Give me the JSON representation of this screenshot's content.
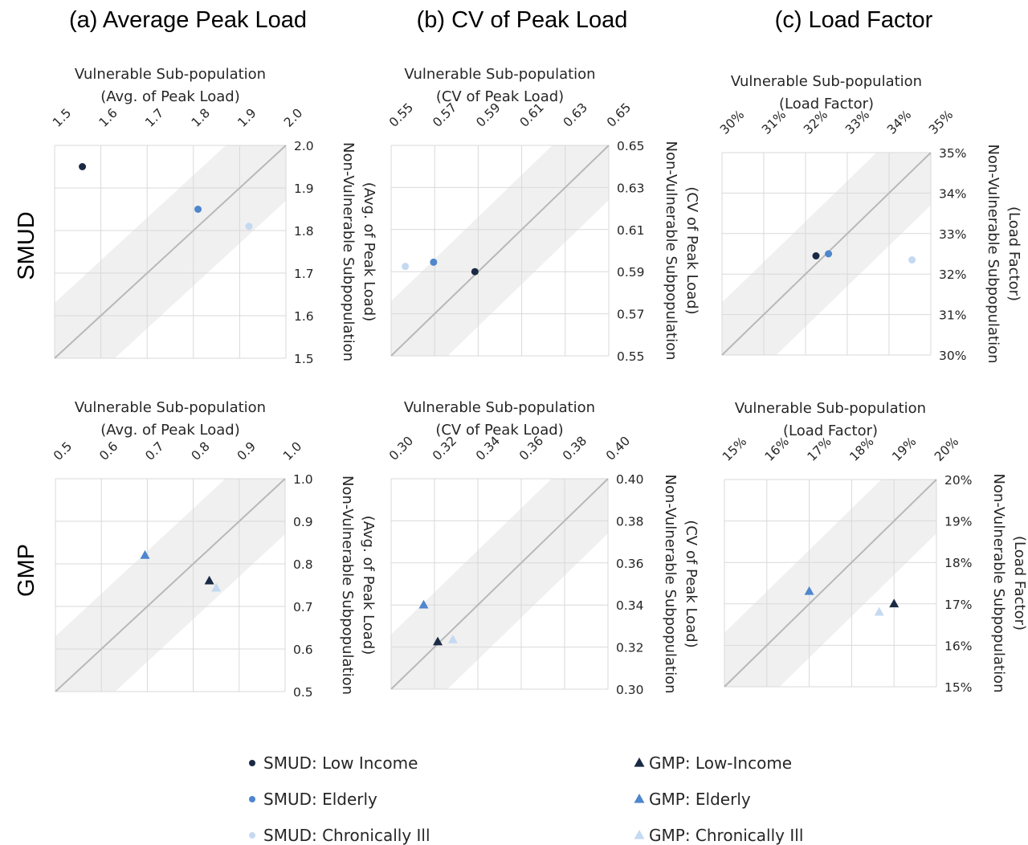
{
  "column_titles": [
    "(a) Average Peak Load",
    "(b) CV of Peak Load",
    "(c) Load Factor"
  ],
  "row_labels": [
    "SMUD",
    "GMP"
  ],
  "colors": {
    "low_income": "#1a2a44",
    "elderly": "#4f86cc",
    "chronically_ill": "#c5d9f1",
    "band": "#f0f0f0",
    "diagonal": "#b8b8b8",
    "grid": "#d9d9d9"
  },
  "legend": [
    {
      "label": "SMUD: Low Income",
      "marker": "circle",
      "color": "#1a2a44"
    },
    {
      "label": "GMP: Low-Income",
      "marker": "triangle",
      "color": "#1a2a44"
    },
    {
      "label": "SMUD: Elderly",
      "marker": "circle",
      "color": "#4f86cc"
    },
    {
      "label": "GMP: Elderly",
      "marker": "triangle",
      "color": "#4f86cc"
    },
    {
      "label": "SMUD: Chronically Ill",
      "marker": "circle",
      "color": "#c5d9f1"
    },
    {
      "label": "GMP: Chronically Ill",
      "marker": "triangle",
      "color": "#c5d9f1"
    }
  ],
  "chart_data": [
    {
      "type": "scatter",
      "group": "SMUD",
      "xlabel": [
        "Vulnerable Sub-population",
        "(Avg. of Peak Load)"
      ],
      "ylabel": [
        "Non-Vulnerable Subpopulation",
        "(Avg. of Peak Load)"
      ],
      "xlim": [
        1.5,
        2.0
      ],
      "ylim": [
        1.5,
        2.0
      ],
      "xticks": [
        "1.5",
        "1.6",
        "1.7",
        "1.8",
        "1.9",
        "2.0"
      ],
      "yticks": [
        "1.5",
        "1.6",
        "1.7",
        "1.8",
        "1.9",
        "2.0"
      ],
      "grid": true,
      "band": [
        -0.13,
        0.13
      ],
      "series": [
        {
          "name": "SMUD: Low Income",
          "x": [
            1.56
          ],
          "y": [
            1.95
          ]
        },
        {
          "name": "SMUD: Elderly",
          "x": [
            1.81
          ],
          "y": [
            1.85
          ]
        },
        {
          "name": "SMUD: Chronically Ill",
          "x": [
            1.92
          ],
          "y": [
            1.81
          ]
        }
      ]
    },
    {
      "type": "scatter",
      "group": "SMUD",
      "xlabel": [
        "Vulnerable Sub-population",
        "(CV of Peak Load)"
      ],
      "ylabel": [
        "Non-Vulnerable Subpopulation",
        "(CV of Peak Load)"
      ],
      "xlim": [
        0.55,
        0.65
      ],
      "ylim": [
        0.55,
        0.65
      ],
      "xticks": [
        "0.55",
        "0.57",
        "0.59",
        "0.61",
        "0.63",
        "0.65"
      ],
      "yticks": [
        "0.55",
        "0.57",
        "0.59",
        "0.61",
        "0.63",
        "0.65"
      ],
      "grid": true,
      "band": [
        -0.026,
        0.026
      ],
      "series": [
        {
          "name": "SMUD: Low Income",
          "x": [
            0.5885
          ],
          "y": [
            0.59
          ]
        },
        {
          "name": "SMUD: Elderly",
          "x": [
            0.5695
          ],
          "y": [
            0.5945
          ]
        },
        {
          "name": "SMUD: Chronically Ill",
          "x": [
            0.5565
          ],
          "y": [
            0.5925
          ]
        }
      ]
    },
    {
      "type": "scatter",
      "group": "SMUD",
      "xlabel": [
        "Vulnerable Sub-population",
        "(Load Factor)"
      ],
      "ylabel": [
        "Non-Vulnerable Subpopulation",
        "(Load Factor)"
      ],
      "xlim": [
        0.3,
        0.35
      ],
      "ylim": [
        0.3,
        0.35
      ],
      "xticks": [
        "30%",
        "31%",
        "32%",
        "33%",
        "34%",
        "35%"
      ],
      "yticks": [
        "30%",
        "31%",
        "32%",
        "33%",
        "34%",
        "35%"
      ],
      "grid": true,
      "band": [
        -0.013,
        0.013
      ],
      "series": [
        {
          "name": "SMUD: Low Income",
          "x": [
            0.3225
          ],
          "y": [
            0.3245
          ]
        },
        {
          "name": "SMUD: Elderly",
          "x": [
            0.3255
          ],
          "y": [
            0.325
          ]
        },
        {
          "name": "SMUD: Chronically Ill",
          "x": [
            0.3455
          ],
          "y": [
            0.3235
          ]
        }
      ]
    },
    {
      "type": "scatter",
      "group": "GMP",
      "xlabel": [
        "Vulnerable Sub-population",
        "(Avg. of Peak Load)"
      ],
      "ylabel": [
        "Non-Vulnerable Subpopulation",
        "(Avg. of Peak Load)"
      ],
      "xlim": [
        0.5,
        1.0
      ],
      "ylim": [
        0.5,
        1.0
      ],
      "xticks": [
        "0.5",
        "0.6",
        "0.7",
        "0.8",
        "0.9",
        "1.0"
      ],
      "yticks": [
        "0.5",
        "0.6",
        "0.7",
        "0.8",
        "0.9",
        "1.0"
      ],
      "grid": true,
      "band": [
        -0.13,
        0.13
      ],
      "series": [
        {
          "name": "GMP: Low-Income",
          "x": [
            0.835
          ],
          "y": [
            0.76
          ]
        },
        {
          "name": "GMP: Elderly",
          "x": [
            0.695
          ],
          "y": [
            0.82
          ]
        },
        {
          "name": "GMP: Chronically Ill",
          "x": [
            0.85
          ],
          "y": [
            0.743
          ]
        }
      ]
    },
    {
      "type": "scatter",
      "group": "GMP",
      "xlabel": [
        "Vulnerable Sub-population",
        "(CV of Peak Load)"
      ],
      "ylabel": [
        "Non-Vulnerable Subpopulation",
        "(CV of Peak Load)"
      ],
      "xlim": [
        0.3,
        0.4
      ],
      "ylim": [
        0.3,
        0.4
      ],
      "xticks": [
        "0.30",
        "0.32",
        "0.34",
        "0.36",
        "0.38",
        "0.40"
      ],
      "yticks": [
        "0.30",
        "0.32",
        "0.34",
        "0.36",
        "0.38",
        "0.40"
      ],
      "grid": true,
      "band": [
        -0.026,
        0.026
      ],
      "series": [
        {
          "name": "GMP: Low-Income",
          "x": [
            0.3215
          ],
          "y": [
            0.3225
          ]
        },
        {
          "name": "GMP: Elderly",
          "x": [
            0.315
          ],
          "y": [
            0.34
          ]
        },
        {
          "name": "GMP: Chronically Ill",
          "x": [
            0.3285
          ],
          "y": [
            0.3235
          ]
        }
      ]
    },
    {
      "type": "scatter",
      "group": "GMP",
      "xlabel": [
        "Vulnerable Sub-population",
        "(Load Factor)"
      ],
      "ylabel": [
        "Non-Vulnerable Subpopulation",
        "(Load Factor)"
      ],
      "xlim": [
        0.15,
        0.2
      ],
      "ylim": [
        0.15,
        0.2
      ],
      "xticks": [
        "15%",
        "16%",
        "17%",
        "18%",
        "19%",
        "20%"
      ],
      "yticks": [
        "15%",
        "16%",
        "17%",
        "18%",
        "19%",
        "20%"
      ],
      "grid": true,
      "band": [
        -0.013,
        0.013
      ],
      "series": [
        {
          "name": "GMP: Low-Income",
          "x": [
            0.19
          ],
          "y": [
            0.17
          ]
        },
        {
          "name": "GMP: Elderly",
          "x": [
            0.17
          ],
          "y": [
            0.173
          ]
        },
        {
          "name": "GMP: Chronically Ill",
          "x": [
            0.1865
          ],
          "y": [
            0.168
          ]
        }
      ]
    }
  ]
}
